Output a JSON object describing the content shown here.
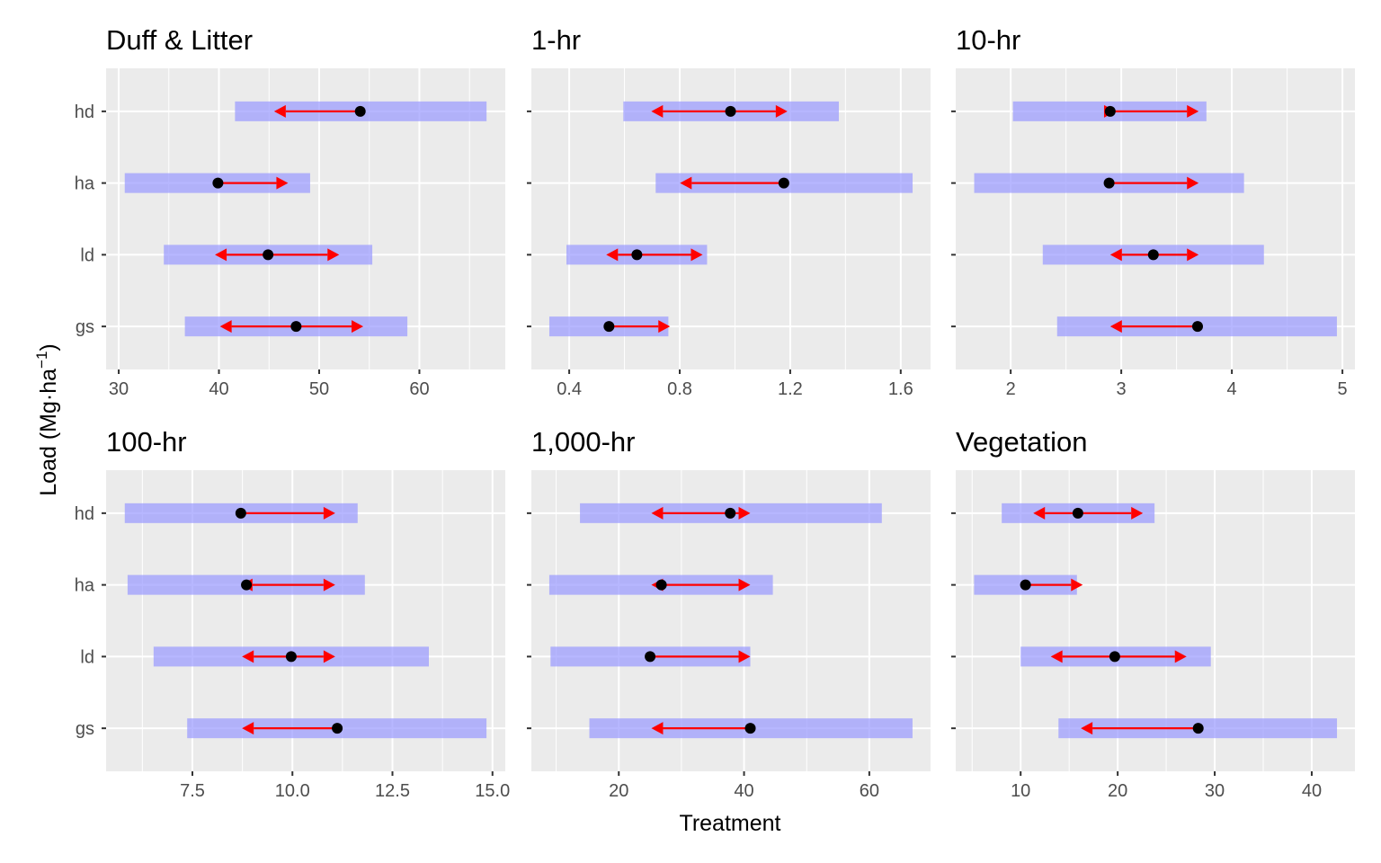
{
  "chart_data": {
    "type": "faceted-range-plot",
    "ylabel": "Load (Mg·ha⁻¹)",
    "xlabel": "Treatment",
    "categories": [
      "hd",
      "ha",
      "ld",
      "gs"
    ],
    "layers": {
      "band": "shaded range (blue, translucent)",
      "point": "black point estimate",
      "arrow": "red arrow(s) from point"
    },
    "colors": {
      "panel_bg": "#ebebeb",
      "grid": "#ffffff",
      "band": "#9999ff",
      "point": "#000000",
      "arrow": "#ff0000"
    },
    "grid": true,
    "legend": "none",
    "panels": [
      {
        "title": "Duff & Litter",
        "xlim": [
          28.74,
          68.57
        ],
        "ticks": [
          30,
          40,
          50,
          60
        ],
        "tick_labels": [
          "30",
          "40",
          "50",
          "60"
        ],
        "minor": [
          35,
          45,
          55,
          65
        ],
        "rows": [
          {
            "cat": "hd",
            "band": [
              41.6,
              66.7
            ],
            "point": 54.1,
            "arrows": [
              45.5
            ]
          },
          {
            "cat": "ha",
            "band": [
              30.6,
              49.1
            ],
            "point": 39.9,
            "arrows": [
              46.9
            ]
          },
          {
            "cat": "ld",
            "band": [
              34.5,
              55.3
            ],
            "point": 44.9,
            "arrows": [
              39.6,
              52.0
            ]
          },
          {
            "cat": "gs",
            "band": [
              36.6,
              58.8
            ],
            "point": 47.7,
            "arrows": [
              40.1,
              54.4
            ]
          }
        ]
      },
      {
        "title": "1-hr",
        "xlim": [
          0.263,
          1.708
        ],
        "ticks": [
          0.4,
          0.8,
          1.2,
          1.6
        ],
        "tick_labels": [
          "0.4",
          "0.8",
          "1.2",
          "1.6"
        ],
        "minor": [
          0.6,
          1.0,
          1.4
        ],
        "rows": [
          {
            "cat": "hd",
            "band": [
              0.596,
              1.376
            ],
            "point": 0.984,
            "arrows": [
              0.697,
              1.19
            ]
          },
          {
            "cat": "ha",
            "band": [
              0.713,
              1.643
            ],
            "point": 1.177,
            "arrows": [
              0.801
            ]
          },
          {
            "cat": "ld",
            "band": [
              0.39,
              0.899
            ],
            "point": 0.645,
            "arrows": [
              0.534,
              0.883
            ]
          },
          {
            "cat": "gs",
            "band": [
              0.328,
              0.759
            ],
            "point": 0.544,
            "arrows": [
              0.765
            ]
          }
        ]
      },
      {
        "title": "10-hr",
        "xlim": [
          1.503,
          5.113
        ],
        "ticks": [
          2,
          3,
          4,
          5
        ],
        "tick_labels": [
          "2",
          "3",
          "4",
          "5"
        ],
        "minor": [
          2.5,
          3.5,
          4.5
        ],
        "rows": [
          {
            "cat": "hd",
            "band": [
              2.02,
              3.77
            ],
            "point": 2.9,
            "arrows": [
              2.95,
              3.7
            ]
          },
          {
            "cat": "ha",
            "band": [
              1.67,
              4.11
            ],
            "point": 2.89,
            "arrows": [
              3.7
            ]
          },
          {
            "cat": "ld",
            "band": [
              2.29,
              4.29
            ],
            "point": 3.29,
            "arrows": [
              2.9,
              3.7
            ]
          },
          {
            "cat": "gs",
            "band": [
              2.42,
              4.95
            ],
            "point": 3.69,
            "arrows": [
              2.9
            ]
          }
        ]
      },
      {
        "title": "100-hr",
        "xlim": [
          5.343,
          15.32
        ],
        "ticks": [
          7.5,
          10.0,
          12.5,
          15.0
        ],
        "tick_labels": [
          "7.5",
          "10.0",
          "12.5",
          "15.0"
        ],
        "minor": [
          6.25,
          8.75,
          11.25,
          13.75
        ],
        "rows": [
          {
            "cat": "hd",
            "band": [
              5.81,
              11.63
            ],
            "point": 8.71,
            "arrows": [
              11.07
            ]
          },
          {
            "cat": "ha",
            "band": [
              5.88,
              11.81
            ],
            "point": 8.85,
            "arrows": [
              8.71,
              11.07
            ]
          },
          {
            "cat": "ld",
            "band": [
              6.53,
              13.41
            ],
            "point": 9.97,
            "arrows": [
              8.74,
              11.07
            ]
          },
          {
            "cat": "gs",
            "band": [
              7.37,
              14.85
            ],
            "point": 11.12,
            "arrows": [
              8.74
            ]
          }
        ]
      },
      {
        "title": "1,000-hr",
        "xlim": [
          6.04,
          69.78
        ],
        "ticks": [
          20,
          40,
          60
        ],
        "tick_labels": [
          "20",
          "40",
          "60"
        ],
        "minor": [
          10,
          30,
          50
        ],
        "rows": [
          {
            "cat": "hd",
            "band": [
              13.8,
              62.0
            ],
            "point": 37.8,
            "arrows": [
              25.2,
              41.0
            ]
          },
          {
            "cat": "ha",
            "band": [
              8.9,
              44.6
            ],
            "point": 26.8,
            "arrows": [
              25.2,
              41.0
            ]
          },
          {
            "cat": "ld",
            "band": [
              9.1,
              41.0
            ],
            "point": 25.0,
            "arrows": [
              41.0
            ]
          },
          {
            "cat": "gs",
            "band": [
              15.3,
              66.9
            ],
            "point": 41.0,
            "arrows": [
              25.2
            ]
          }
        ]
      },
      {
        "title": "Vegetation",
        "xlim": [
          3.31,
          44.45
        ],
        "ticks": [
          10,
          20,
          30,
          40
        ],
        "tick_labels": [
          "10",
          "20",
          "30",
          "40"
        ],
        "minor": [
          5,
          15,
          25,
          35
        ],
        "rows": [
          {
            "cat": "hd",
            "band": [
              8.05,
              23.8
            ],
            "point": 15.9,
            "arrows": [
              11.3,
              22.6
            ]
          },
          {
            "cat": "ha",
            "band": [
              5.2,
              15.8
            ],
            "point": 10.5,
            "arrows": [
              16.4
            ]
          },
          {
            "cat": "ld",
            "band": [
              10.0,
              29.6
            ],
            "point": 19.7,
            "arrows": [
              13.1,
              27.1
            ]
          },
          {
            "cat": "gs",
            "band": [
              13.9,
              42.6
            ],
            "point": 28.3,
            "arrows": [
              16.2
            ]
          }
        ]
      }
    ]
  }
}
